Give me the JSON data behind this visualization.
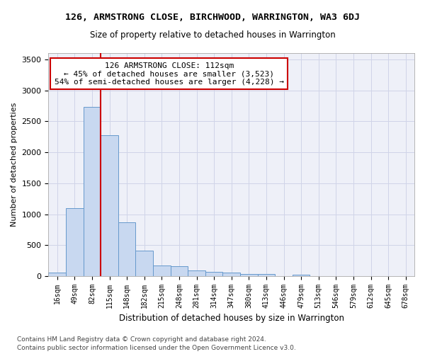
{
  "title": "126, ARMSTRONG CLOSE, BIRCHWOOD, WARRINGTON, WA3 6DJ",
  "subtitle": "Size of property relative to detached houses in Warrington",
  "xlabel": "Distribution of detached houses by size in Warrington",
  "ylabel": "Number of detached properties",
  "footnote1": "Contains HM Land Registry data © Crown copyright and database right 2024.",
  "footnote2": "Contains public sector information licensed under the Open Government Licence v3.0.",
  "annotation_line1": "126 ARMSTRONG CLOSE: 112sqm",
  "annotation_line2": "← 45% of detached houses are smaller (3,523)",
  "annotation_line3": "54% of semi-detached houses are larger (4,228) →",
  "bar_labels": [
    "16sqm",
    "49sqm",
    "82sqm",
    "115sqm",
    "148sqm",
    "182sqm",
    "215sqm",
    "248sqm",
    "281sqm",
    "314sqm",
    "347sqm",
    "380sqm",
    "413sqm",
    "446sqm",
    "479sqm",
    "513sqm",
    "546sqm",
    "579sqm",
    "612sqm",
    "645sqm",
    "678sqm"
  ],
  "bar_values": [
    55,
    1100,
    2730,
    2280,
    870,
    415,
    170,
    165,
    95,
    65,
    55,
    30,
    30,
    0,
    25,
    0,
    0,
    0,
    0,
    0,
    0
  ],
  "bar_color": "#c8d8f0",
  "bar_edge_color": "#6699cc",
  "grid_color": "#d0d4e8",
  "bg_color": "#eef0f8",
  "vline_color": "#cc0000",
  "vline_x_index": 3,
  "annotation_box_color": "#cc0000",
  "ylim": [
    0,
    3600
  ],
  "yticks": [
    0,
    500,
    1000,
    1500,
    2000,
    2500,
    3000,
    3500
  ]
}
